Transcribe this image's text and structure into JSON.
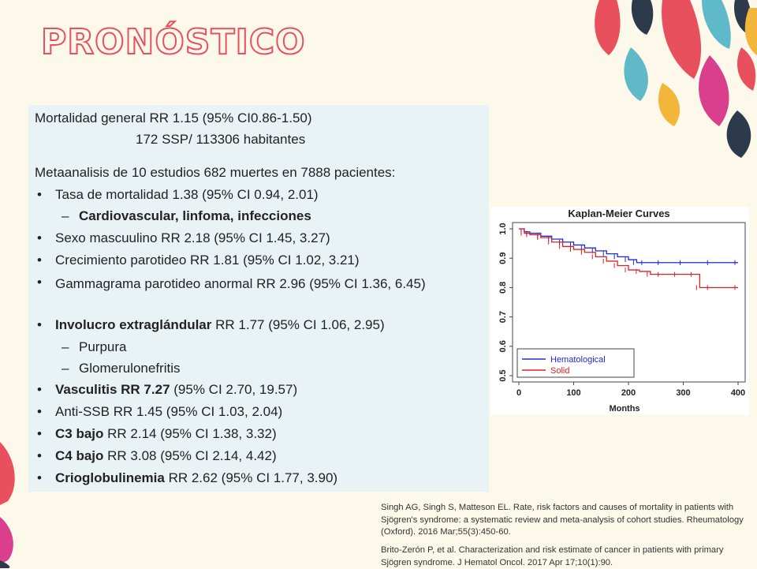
{
  "title": "PRONÓSTICO",
  "panel": {
    "mortality": "Mortalidad general RR 1.15 (95% CI0.86-1.50)",
    "ratio": "172 SSP/ 113306 habitantes",
    "meta": "Metaanalisis de 10 estudios 682 muertes en 7888 pacientes:",
    "items": [
      {
        "bullet": "•",
        "bold": "",
        "text": "Tasa de mortalidad 1.38 (95% CI 0.94, 2.01)"
      },
      {
        "bullet": "–",
        "bold": "Cardiovascular, linfoma, infecciones",
        "text": ""
      },
      {
        "bullet": "•",
        "bold": "",
        "text": "Sexo mascuulino RR 2.18 (95% CI 1.45, 3.27)"
      },
      {
        "bullet": "•",
        "bold": "",
        "text": "Crecimiento parotideo RR 1.81 (95% CI 1.02, 3.21)"
      },
      {
        "bullet": "•",
        "bold": "",
        "text": "Gammagrama parotideo anormal RR 2.96 (95% CI 1.36, 6.45)"
      },
      {
        "bullet": "•",
        "bold": "Involucro extraglándular",
        "text": " RR 1.77 (95% CI 1.06, 2.95)"
      },
      {
        "bullet": "–",
        "bold": "",
        "text": "Purpura"
      },
      {
        "bullet": "–",
        "bold": "",
        "text": "Glomerulonefritis"
      },
      {
        "bullet": "•",
        "bold": "Vasculitis RR 7.27",
        "text": " (95% CI 2.70, 19.57)"
      },
      {
        "bullet": "•",
        "bold": "",
        "text": "Anti-SSB RR 1.45 (95% CI 1.03, 2.04)"
      },
      {
        "bullet": "•",
        "bold": "C3 bajo",
        "text": " RR 2.14 (95% CI 1.38, 3.32)"
      },
      {
        "bullet": "•",
        "bold": "C4 bajo",
        "text": " RR 3.08 (95% CI 2.14, 4.42)"
      },
      {
        "bullet": "•",
        "bold": "Crioglobulinemia",
        "text": " RR 2.62 (95% CI 1.77, 3.90)"
      }
    ]
  },
  "chart_data": {
    "type": "line",
    "title": "Kaplan-Meier Curves",
    "xlabel": "Months",
    "ylabel": "",
    "xlim": [
      0,
      400
    ],
    "ylim": [
      0.5,
      1.0
    ],
    "xticks": [
      0,
      100,
      200,
      300,
      400
    ],
    "yticks": [
      0.5,
      0.6,
      0.7,
      0.8,
      0.9,
      1.0
    ],
    "legend_position": "bottom-left",
    "series": [
      {
        "name": "Hematological",
        "color": "#1a2bd6",
        "x": [
          0,
          10,
          20,
          40,
          60,
          80,
          100,
          120,
          140,
          160,
          180,
          200,
          215,
          230,
          260,
          300,
          350,
          400
        ],
        "y": [
          1.0,
          0.99,
          0.985,
          0.975,
          0.965,
          0.955,
          0.945,
          0.935,
          0.925,
          0.915,
          0.905,
          0.895,
          0.885,
          0.885,
          0.885,
          0.885,
          0.885,
          0.885
        ]
      },
      {
        "name": "Solid",
        "color": "#e02020",
        "x": [
          0,
          10,
          20,
          40,
          60,
          80,
          100,
          120,
          140,
          160,
          180,
          200,
          220,
          240,
          260,
          290,
          320,
          330,
          350,
          400
        ],
        "y": [
          1.0,
          0.985,
          0.98,
          0.97,
          0.955,
          0.94,
          0.93,
          0.92,
          0.905,
          0.89,
          0.875,
          0.86,
          0.855,
          0.845,
          0.845,
          0.845,
          0.845,
          0.8,
          0.8,
          0.8
        ]
      }
    ]
  },
  "references": [
    "Singh AG, Singh S, Matteson EL. Rate, risk factors and causes of mortality in patients with Sjögren's syndrome: a systematic review and meta-analysis of cohort studies. Rheumatology (Oxford). 2016 Mar;55(3):450-60.",
    "Brito-Zerón P, et al. Characterization and risk estimate of cancer in patients with primary Sjögren syndrome. J Hematol Oncol. 2017 Apr 17;10(1):90."
  ],
  "colors": {
    "title": "#e8505e",
    "panel": "#e9f3f6",
    "teal": "#5fb9c9",
    "pink": "#e8505e",
    "navy": "#2d3a4b",
    "gold": "#f2b63a",
    "magenta": "#d93f8c"
  }
}
